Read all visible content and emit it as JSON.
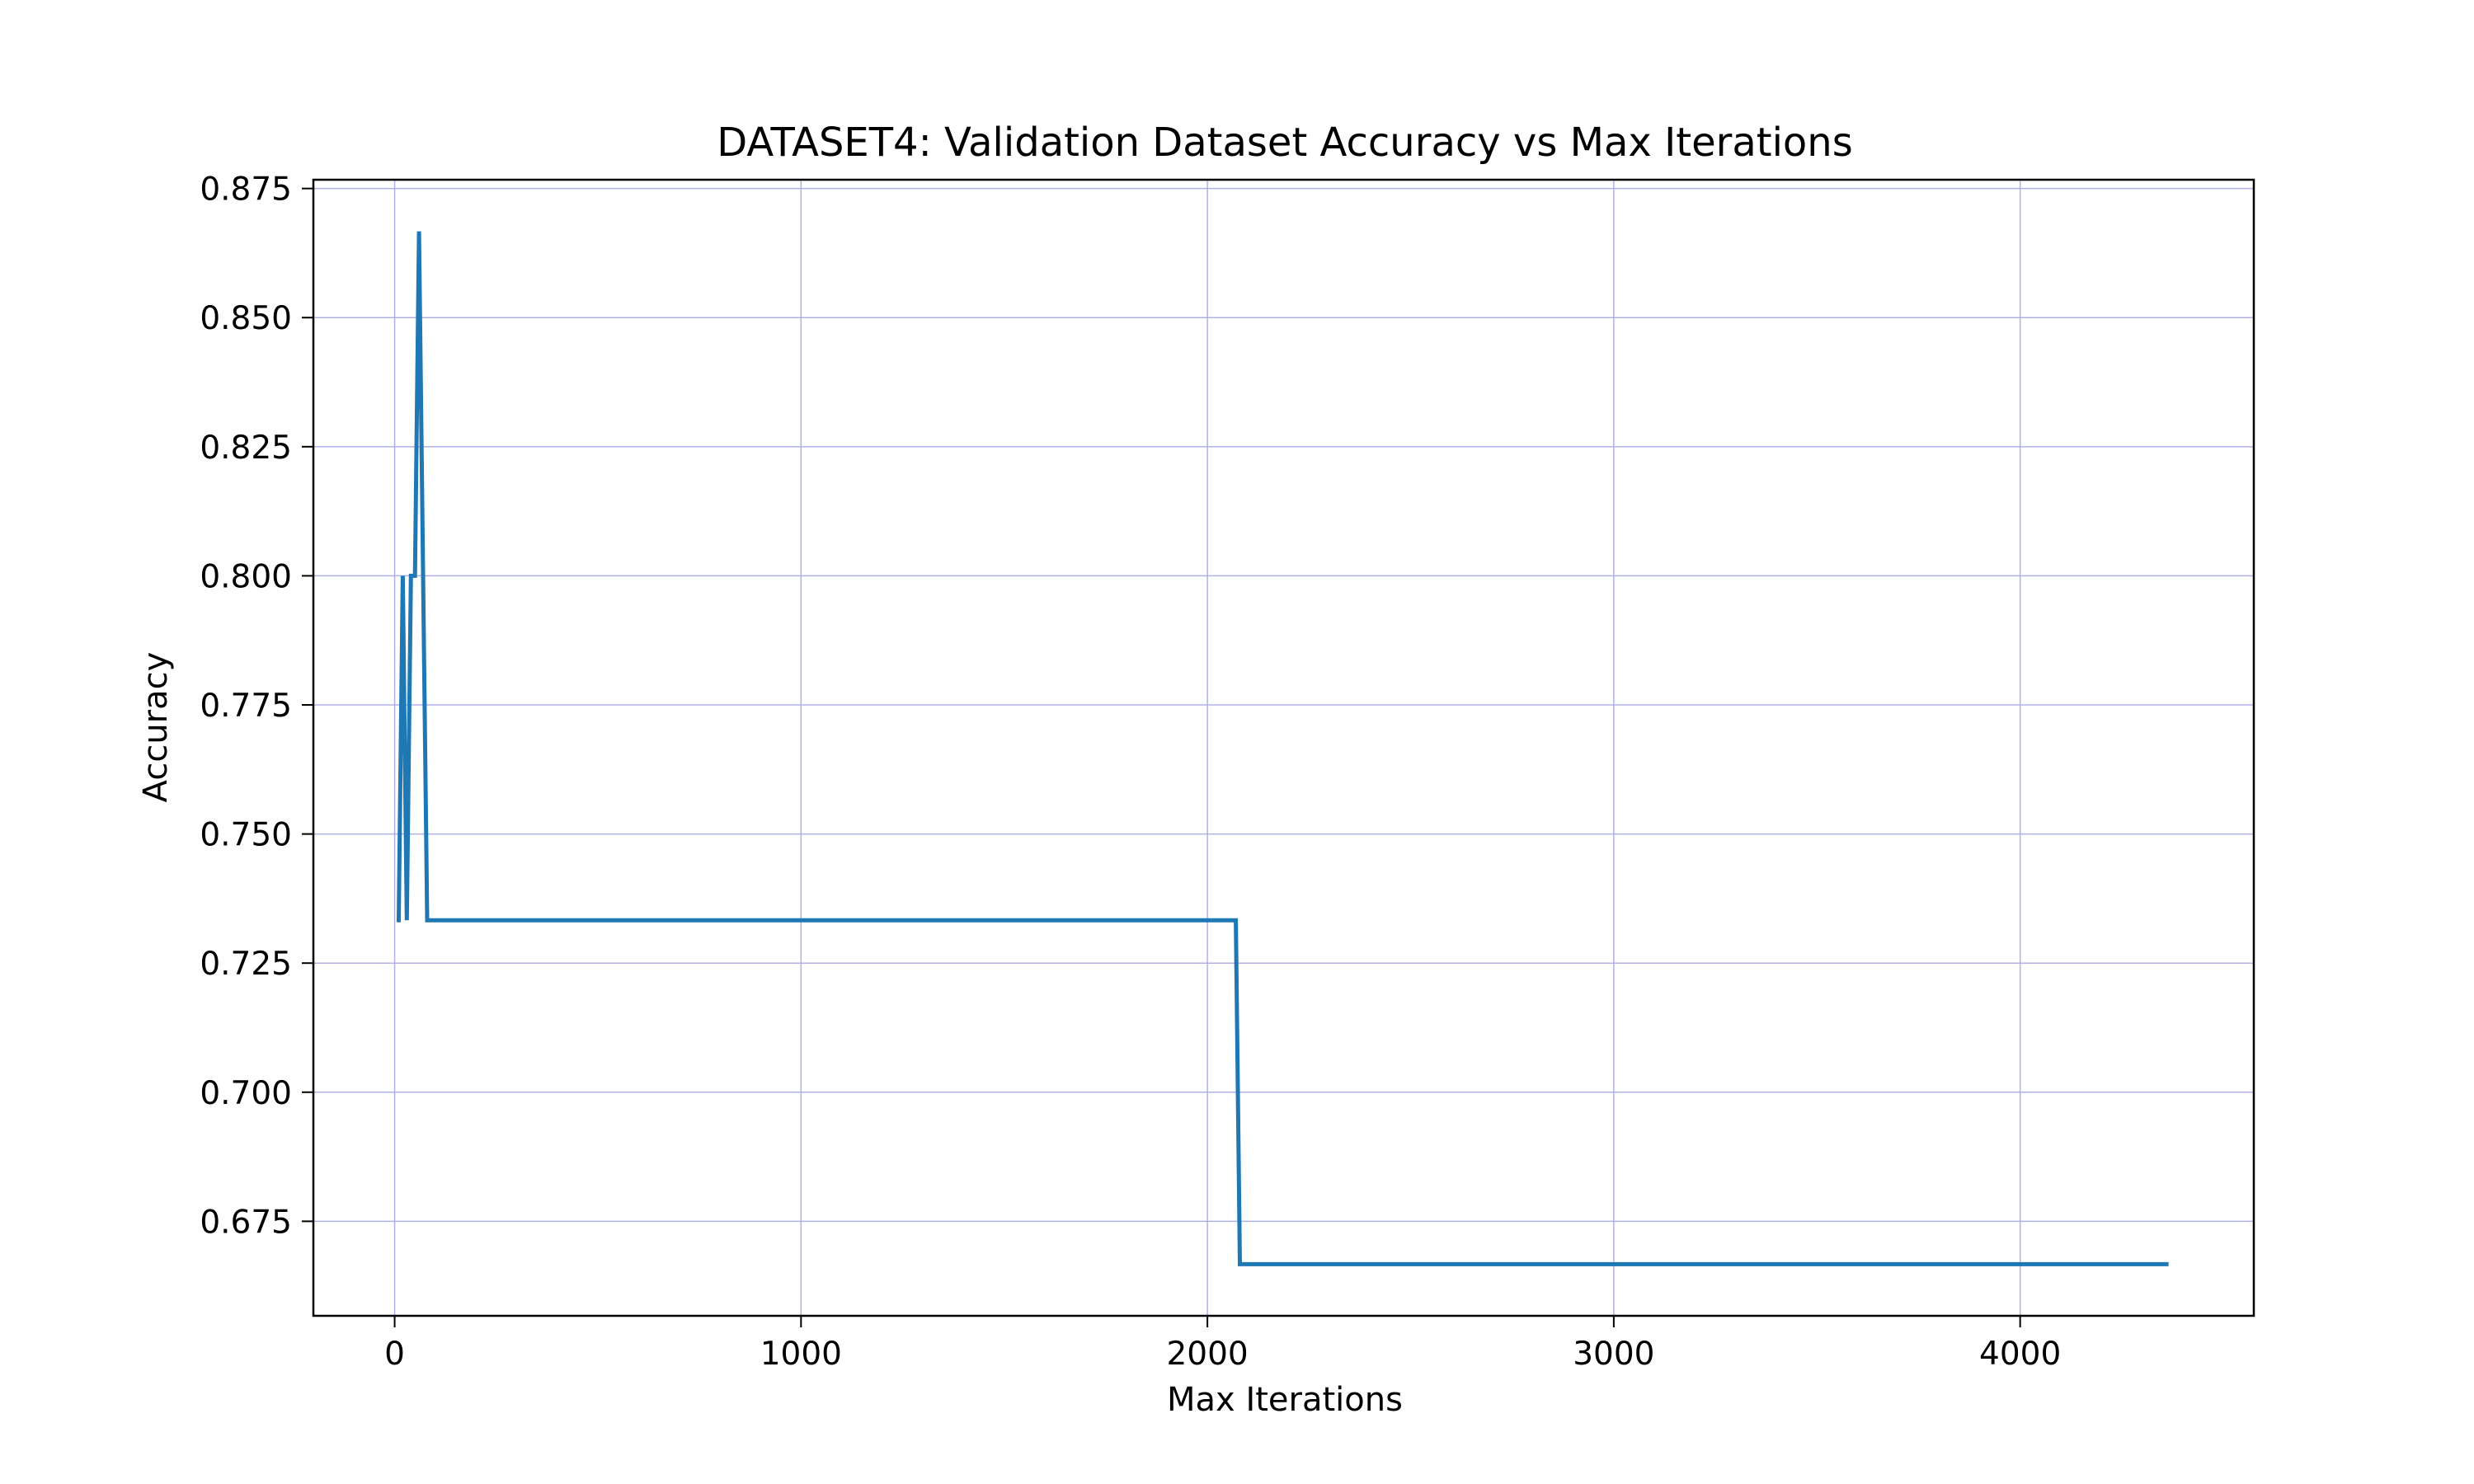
{
  "chart_data": {
    "type": "line",
    "title": "DATASET4: Validation Dataset Accuracy vs Max Iterations",
    "xlabel": "Max Iterations",
    "ylabel": "Accuracy",
    "xlim": [
      -200,
      4575
    ],
    "ylim": [
      0.6567,
      0.8767
    ],
    "x_ticks": [
      0,
      1000,
      2000,
      3000,
      4000
    ],
    "x_tick_labels": [
      "0",
      "1000",
      "2000",
      "3000",
      "4000"
    ],
    "y_ticks": [
      0.675,
      0.7,
      0.725,
      0.75,
      0.775,
      0.8,
      0.825,
      0.85,
      0.875
    ],
    "y_tick_labels": [
      "0.675",
      "0.700",
      "0.725",
      "0.750",
      "0.775",
      "0.800",
      "0.825",
      "0.850",
      "0.875"
    ],
    "grid": true,
    "grid_color": "#b0b0e8",
    "line_color": "#1f77b4",
    "series": [
      {
        "x": [
          10,
          20,
          30,
          40,
          50,
          60,
          80,
          2070,
          2080,
          4360
        ],
        "y": [
          0.7333,
          0.8,
          0.7333,
          0.8,
          0.8,
          0.8667,
          0.7333,
          0.7333,
          0.6667,
          0.6667
        ]
      }
    ]
  }
}
